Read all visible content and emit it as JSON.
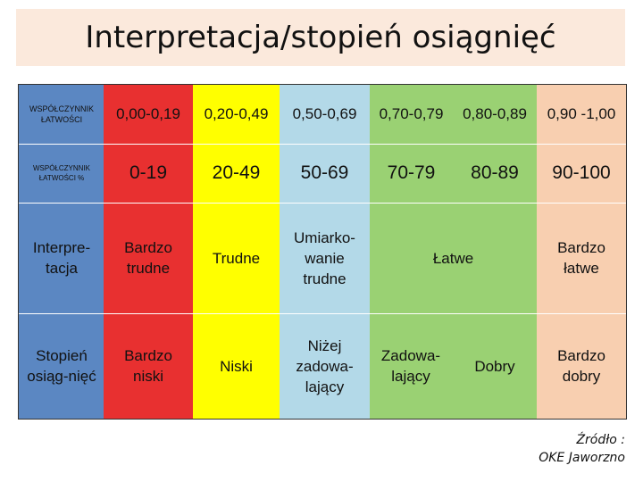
{
  "title": "Interpretacja/stopień osiągnięć",
  "rows": {
    "coef_label": "WSPÓŁCZYNNIK ŁATWOŚCI",
    "coef_ranges": [
      "0,00-0,19",
      "0,20-0,49",
      "0,50-0,69",
      "0,70-0,79",
      "0,80-0,89",
      "0,90 -1,00"
    ],
    "pct_label": "WSPÓŁCZYNNIK ŁATWOŚCI %",
    "pct_ranges": [
      "0-19",
      "20-49",
      "50-69",
      "70-79",
      "80-89",
      "90-100"
    ],
    "interp_label": "Interpre-tacja",
    "interp": [
      "Bardzo trudne",
      "Trudne",
      "Umiarko-wanie trudne",
      "Łatwe",
      "Bardzo łatwe"
    ],
    "level_label": "Stopień osiąg-nięć",
    "level": [
      "Bardzo niski",
      "Niski",
      "Niżej zadowa-lający",
      "Zadowa-lający",
      "Dobry",
      "Bardzo dobry"
    ]
  },
  "colors": {
    "label_column": "#5b87c2",
    "very_hard": "#e83030",
    "hard": "#ffff00",
    "moderate": "#b3d9e8",
    "easy": "#9ad173",
    "very_easy": "#f8cfb0"
  },
  "source": {
    "line1": "Źródło :",
    "line2": "OKE Jaworzno"
  }
}
